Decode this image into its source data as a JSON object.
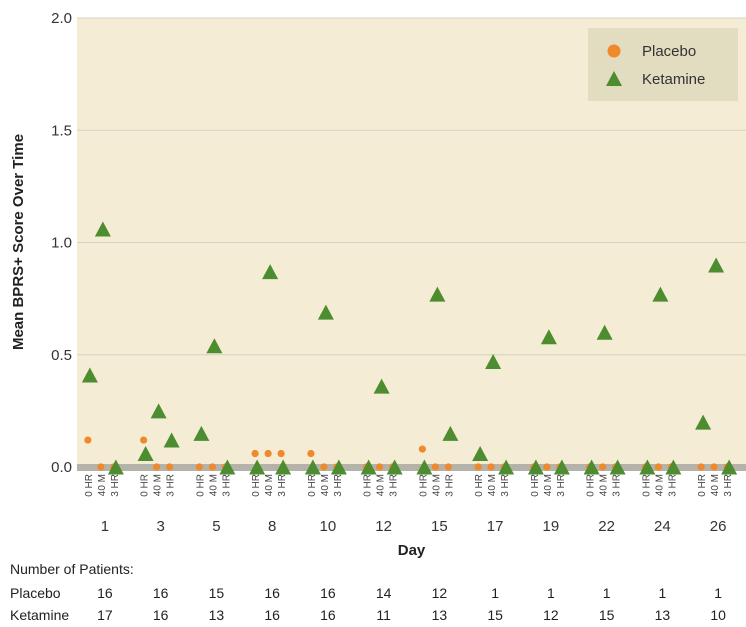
{
  "chart_data": {
    "type": "scatter",
    "xlabel": "Day",
    "ylabel": "Mean BPRS+ Score Over Time",
    "ylim": [
      0,
      2.0
    ],
    "yticks": [
      "0.0",
      "0.5",
      "1.0",
      "1.5",
      "2.0"
    ],
    "grid": true,
    "legend_position": "top-right",
    "days": [
      "1",
      "3",
      "5",
      "8",
      "10",
      "12",
      "15",
      "17",
      "19",
      "22",
      "24",
      "26"
    ],
    "timepoints": [
      "0 HR",
      "40 M",
      "3 HR"
    ],
    "colors": {
      "plot_background": "#f4ecd4",
      "legend_background": "#e2dcc1",
      "baseline": "#b5b2aa",
      "gridline": "#d6d2c2"
    },
    "series": [
      {
        "name": "Placebo",
        "marker": "circle",
        "color": "#f0892b",
        "values": [
          [
            0.12,
            0,
            0
          ],
          [
            0.12,
            0,
            0
          ],
          [
            0,
            0,
            0
          ],
          [
            0.06,
            0.06,
            0.06
          ],
          [
            0.06,
            0,
            0
          ],
          [
            0,
            0,
            0
          ],
          [
            0.08,
            0,
            0
          ],
          [
            0,
            0,
            0
          ],
          [
            0,
            0,
            0
          ],
          [
            0,
            0,
            0
          ],
          [
            0,
            0,
            0
          ],
          [
            0,
            0,
            0
          ]
        ]
      },
      {
        "name": "Ketamine",
        "marker": "triangle",
        "color": "#4d8c2f",
        "values": [
          [
            0.41,
            1.06,
            0
          ],
          [
            0.06,
            0.25,
            0.12
          ],
          [
            0.15,
            0.54,
            0
          ],
          [
            0,
            0.87,
            0
          ],
          [
            0,
            0.69,
            0
          ],
          [
            0,
            0.36,
            0
          ],
          [
            0,
            0.77,
            0.15
          ],
          [
            0.06,
            0.47,
            0
          ],
          [
            0,
            0.58,
            0
          ],
          [
            0,
            0.6,
            0
          ],
          [
            0,
            0.77,
            0
          ],
          [
            0.2,
            0.9,
            0
          ]
        ]
      }
    ]
  },
  "patients_table": {
    "heading": "Number of Patients:",
    "rows": [
      {
        "label": "Placebo",
        "counts": [
          "16",
          "16",
          "15",
          "16",
          "16",
          "14",
          "12",
          "1",
          "1",
          "1",
          "1",
          "1"
        ]
      },
      {
        "label": "Ketamine",
        "counts": [
          "17",
          "16",
          "13",
          "16",
          "16",
          "11",
          "13",
          "15",
          "12",
          "15",
          "13",
          "10"
        ]
      }
    ]
  }
}
